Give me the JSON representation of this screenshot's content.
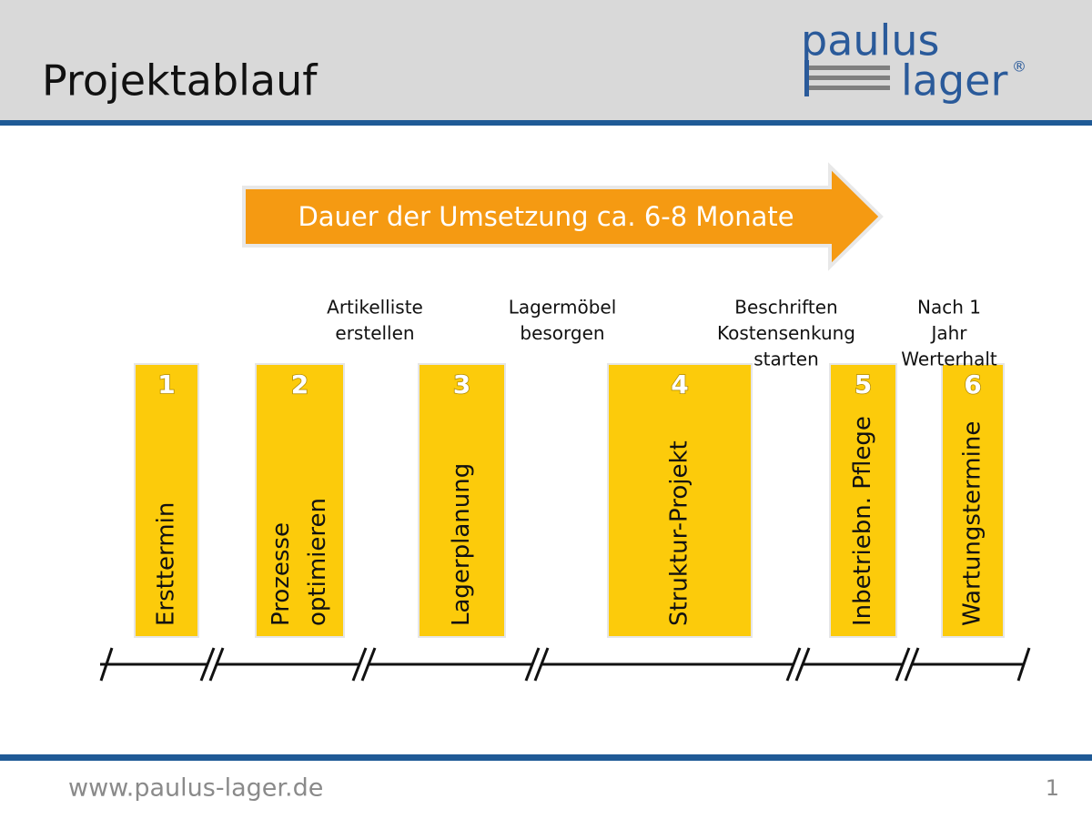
{
  "header": {
    "title": "Projektablauf",
    "logo": {
      "top": "paulus",
      "bottom": "lager",
      "mark": "®"
    }
  },
  "arrow": {
    "label": "Dauer der Umsetzung ca. 6-8 Monate"
  },
  "steps": [
    {
      "number": "1",
      "label": [
        "Ersttermin"
      ]
    },
    {
      "number": "2",
      "label": [
        "Prozesse",
        "optimieren"
      ]
    },
    {
      "number": "3",
      "label": [
        "Lagerplanung"
      ]
    },
    {
      "number": "4",
      "label": [
        "Struktur-Projekt"
      ]
    },
    {
      "number": "5",
      "label": [
        "Inbetriebn. Pflege"
      ]
    },
    {
      "number": "6",
      "label": [
        "Wartungstermine"
      ]
    }
  ],
  "notes": [
    {
      "lines": [
        "Artikelliste",
        "erstellen"
      ]
    },
    {
      "lines": [
        "Lagermöbel",
        "besorgen"
      ]
    },
    {
      "lines": [
        "Beschriften",
        "Kostensenkung",
        "starten"
      ]
    },
    {
      "lines": [
        "Nach 1",
        "Jahr",
        "Werterhalt"
      ]
    }
  ],
  "footer": {
    "url": "www.paulus-lager.de",
    "page": "1"
  }
}
